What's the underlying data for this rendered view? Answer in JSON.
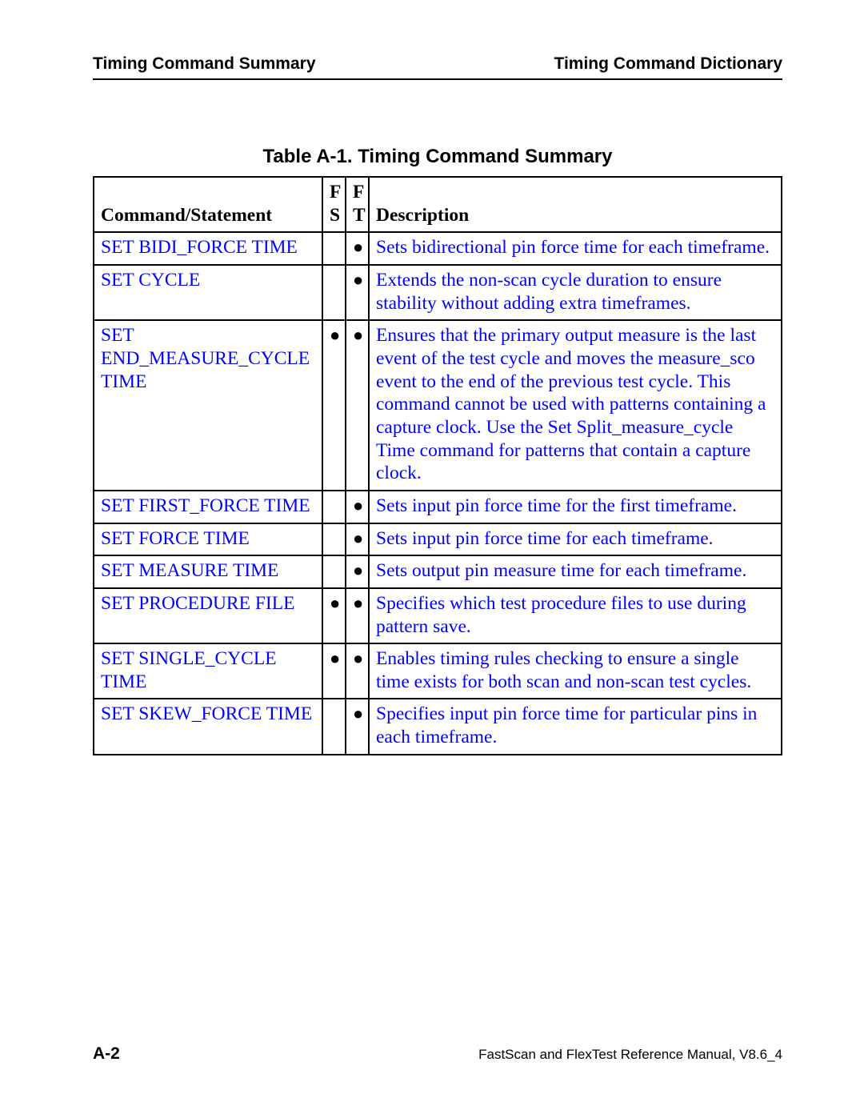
{
  "header": {
    "left": "Timing Command Summary",
    "right": "Timing Command Dictionary"
  },
  "table": {
    "caption": "Table A-1. Timing Command Summary",
    "columns": {
      "cmd": "Command/Statement",
      "fs_top": "F",
      "fs_bot": "S",
      "ft_top": "F",
      "ft_bot": "T",
      "desc": "Description"
    },
    "rows": [
      {
        "cmd": "SET BIDI_FORCE TIME",
        "fs": false,
        "ft": true,
        "desc": "Sets bidirectional pin force time for each timeframe."
      },
      {
        "cmd": "SET CYCLE",
        "fs": false,
        "ft": true,
        "desc": "Extends the non-scan cycle duration to ensure stability without adding extra timeframes."
      },
      {
        "cmd": "SET END_MEASURE_CYCLE TIME",
        "fs": true,
        "ft": true,
        "desc": "Ensures that the primary output measure is the last event of the test cycle and moves the measure_sco event to the end of the previous test cycle. This command cannot be used with patterns containing a capture clock. Use the Set Split_measure_cycle Time command for patterns that contain a capture clock."
      },
      {
        "cmd": "SET FIRST_FORCE TIME",
        "fs": false,
        "ft": true,
        "desc": "Sets input pin force time for the first timeframe."
      },
      {
        "cmd": "SET FORCE TIME",
        "fs": false,
        "ft": true,
        "desc": "Sets input pin force time for each timeframe."
      },
      {
        "cmd": "SET MEASURE TIME",
        "fs": false,
        "ft": true,
        "desc": "Sets output pin measure time for each timeframe."
      },
      {
        "cmd": "SET PROCEDURE FILE",
        "fs": true,
        "ft": true,
        "desc": "Specifies which test procedure files to use during pattern save."
      },
      {
        "cmd": "SET SINGLE_CYCLE TIME",
        "fs": true,
        "ft": true,
        "desc": "Enables timing rules checking to ensure a single time exists for both scan and non-scan test cycles."
      },
      {
        "cmd": "SET SKEW_FORCE TIME",
        "fs": false,
        "ft": true,
        "desc": "Specifies input pin force time for particular pins in each timeframe."
      }
    ]
  },
  "footer": {
    "page": "A-2",
    "ref": "FastScan and FlexTest Reference Manual, V8.6_4"
  },
  "style": {
    "link_color": "#0000ff",
    "bullet": "●"
  }
}
